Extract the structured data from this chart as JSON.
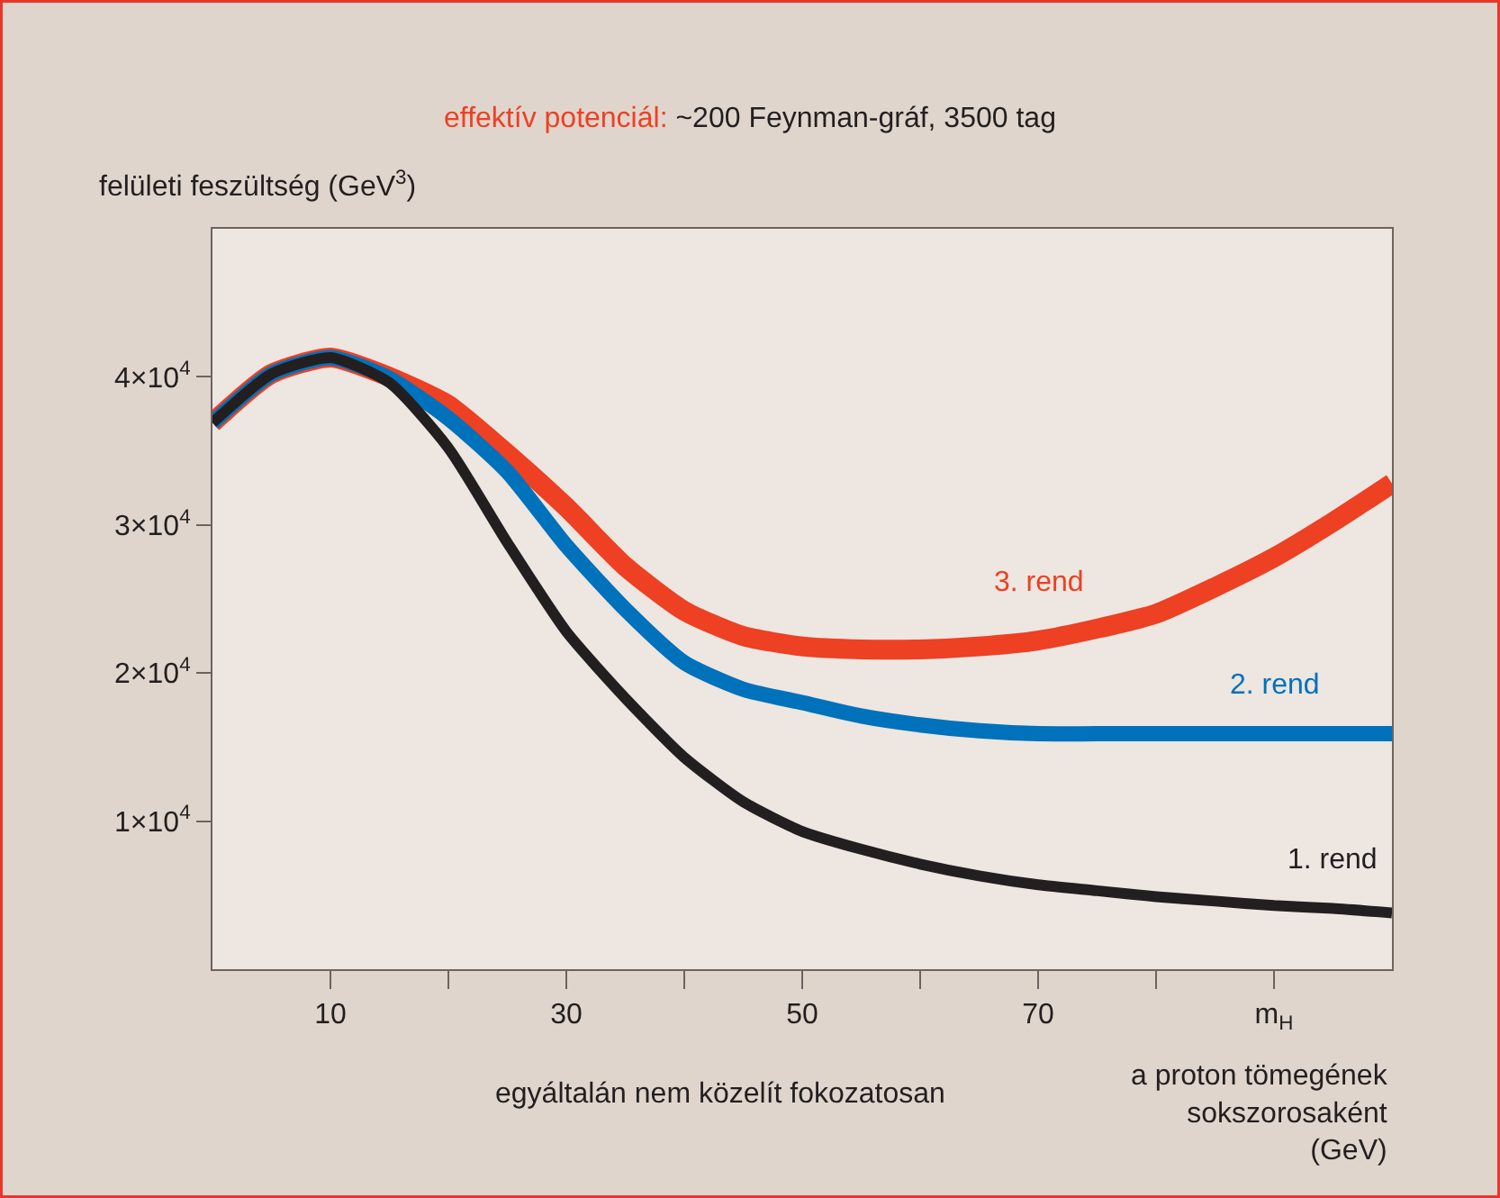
{
  "chart_data": {
    "type": "line",
    "title": "effektív potenciál: ~200 Feynman-gráf, 3500 tag",
    "ylabel": "felületi feszültség (GeV$^{3}$)",
    "xlabel": "a proton tömegének sokszorosaként (GeV)",
    "annotations": [
      "egyáltalán nem közelít fokozatosan"
    ],
    "x": [
      0,
      5,
      10,
      15,
      20,
      25,
      30,
      35,
      40,
      45,
      50,
      55,
      60,
      65,
      70,
      75,
      80,
      85,
      90,
      95,
      100
    ],
    "xlim": [
      0,
      100
    ],
    "xticks": [
      10,
      {
        "value": 20,
        "label": null
      },
      30,
      {
        "value": 40,
        "label": null
      },
      50,
      {
        "value": 60,
        "label": null
      },
      70,
      {
        "value": 80,
        "label": null
      },
      {
        "value": 90,
        "label": "m$_{H}$"
      }
    ],
    "ylim": [
      0,
      50000
    ],
    "yticks": [
      {
        "value": 10000,
        "label": "1×10$^{4}$"
      },
      {
        "value": 20000,
        "label": "2×10$^{4}$"
      },
      {
        "value": 30000,
        "label": "3×10$^{4}$"
      },
      {
        "value": 40000,
        "label": "4×10$^{4}$"
      }
    ],
    "grid": false,
    "legend": false,
    "marker": "none",
    "line_style": "solid",
    "series": [
      {
        "name": "1. rend",
        "color": "#231f20",
        "values": [
          36900,
          40200,
          41300,
          39600,
          35200,
          28800,
          22800,
          18300,
          14300,
          11300,
          9300,
          8100,
          7100,
          6300,
          5700,
          5300,
          4900,
          4600,
          4300,
          4100,
          3800
        ]
      },
      {
        "name": "2. rend",
        "color": "#0071bb",
        "values": [
          36900,
          40200,
          41300,
          39900,
          37200,
          33600,
          28600,
          24300,
          20700,
          18900,
          18000,
          17100,
          16500,
          16100,
          15900,
          15900,
          15900,
          15900,
          15900,
          15900,
          15900
        ]
      },
      {
        "name": "3. rend",
        "color": "#ee4023",
        "values": [
          36900,
          40200,
          41300,
          40000,
          38100,
          34800,
          31200,
          27200,
          24200,
          22500,
          21800,
          21600,
          21600,
          21800,
          22200,
          23000,
          24000,
          25800,
          27800,
          30200,
          32800
        ]
      }
    ]
  }
}
